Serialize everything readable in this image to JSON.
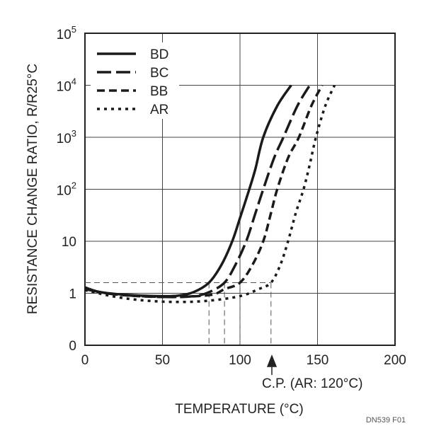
{
  "chart_data": {
    "type": "line",
    "xlabel": "TEMPERATURE (°C)",
    "ylabel": "RESISTANCE CHANGE RATIO, R/R25°C",
    "xlim": [
      0,
      200
    ],
    "ylim": [
      0.1,
      100000
    ],
    "yscale": "log",
    "grid": true,
    "legend_position": "top-left",
    "xticks": [
      {
        "v": 0,
        "label": "0"
      },
      {
        "v": 50,
        "label": "50"
      },
      {
        "v": 100,
        "label": "100"
      },
      {
        "v": 150,
        "label": "150"
      },
      {
        "v": 200,
        "label": "200"
      }
    ],
    "yticks": [
      {
        "v": 0.1,
        "base": "0",
        "exp": ""
      },
      {
        "v": 1,
        "base": "1",
        "exp": ""
      },
      {
        "v": 10,
        "base": "10",
        "exp": ""
      },
      {
        "v": 100,
        "base": "10",
        "exp": "2"
      },
      {
        "v": 1000,
        "base": "10",
        "exp": "3"
      },
      {
        "v": 10000,
        "base": "10",
        "exp": "4"
      },
      {
        "v": 100000,
        "base": "10",
        "exp": "5"
      }
    ],
    "series": [
      {
        "name": "BD",
        "style": "solid",
        "points": [
          [
            0,
            1.3
          ],
          [
            10,
            1.05
          ],
          [
            30,
            0.92
          ],
          [
            50,
            0.88
          ],
          [
            60,
            0.9
          ],
          [
            70,
            1.05
          ],
          [
            80,
            1.6
          ],
          [
            88,
            3.5
          ],
          [
            95,
            10
          ],
          [
            100,
            28
          ],
          [
            106,
            100
          ],
          [
            110,
            250
          ],
          [
            115,
            1000
          ],
          [
            124,
            4000
          ],
          [
            133,
            10000
          ]
        ]
      },
      {
        "name": "BC",
        "style": "long-dash",
        "points": [
          [
            0,
            1.2
          ],
          [
            20,
            0.95
          ],
          [
            50,
            0.85
          ],
          [
            70,
            0.88
          ],
          [
            80,
            1.05
          ],
          [
            90,
            1.6
          ],
          [
            97,
            3.5
          ],
          [
            104,
            10
          ],
          [
            110,
            35
          ],
          [
            115,
            100
          ],
          [
            122,
            400
          ],
          [
            128,
            1000
          ],
          [
            137,
            4000
          ],
          [
            145,
            10000
          ]
        ]
      },
      {
        "name": "BB",
        "style": "dash",
        "points": [
          [
            0,
            1.2
          ],
          [
            20,
            0.95
          ],
          [
            50,
            0.85
          ],
          [
            80,
            0.92
          ],
          [
            90,
            1.2
          ],
          [
            100,
            1.6
          ],
          [
            108,
            3.5
          ],
          [
            115,
            10
          ],
          [
            120,
            35
          ],
          [
            124,
            100
          ],
          [
            131,
            400
          ],
          [
            138,
            1000
          ],
          [
            146,
            4000
          ],
          [
            153,
            10000
          ]
        ]
      },
      {
        "name": "AR",
        "style": "dot",
        "points": [
          [
            0,
            1.15
          ],
          [
            20,
            0.85
          ],
          [
            40,
            0.72
          ],
          [
            60,
            0.68
          ],
          [
            80,
            0.72
          ],
          [
            100,
            0.88
          ],
          [
            112,
            1.2
          ],
          [
            120,
            1.6
          ],
          [
            126,
            3.5
          ],
          [
            131,
            10
          ],
          [
            136,
            35
          ],
          [
            141,
            100
          ],
          [
            145,
            300
          ],
          [
            149,
            1000
          ],
          [
            155,
            4000
          ],
          [
            161,
            10000
          ]
        ]
      }
    ],
    "reference_lines": {
      "y": 1.6,
      "x": [
        80,
        90,
        100,
        120
      ]
    },
    "annotation": "C.P. (AR: 120°C)",
    "figure_id": "DN539 F01"
  }
}
